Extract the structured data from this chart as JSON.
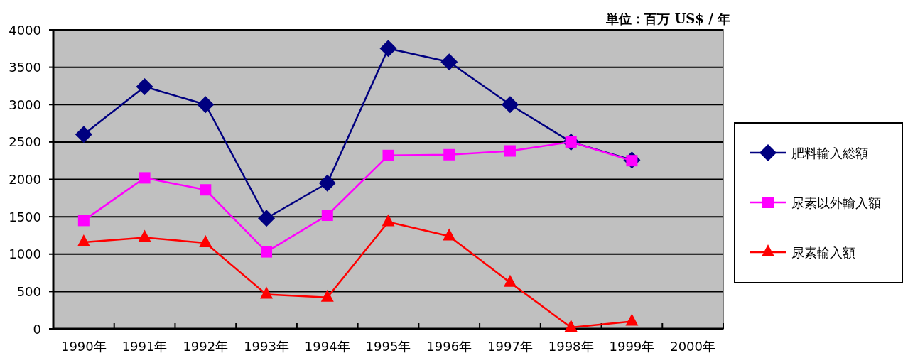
{
  "chart_data": {
    "type": "line",
    "annotations": [
      "単位：百万 US$ / 年"
    ],
    "categories": [
      "1990年",
      "1991年",
      "1992年",
      "1993年",
      "1994年",
      "1995年",
      "1996年",
      "1997年",
      "1998年",
      "1999年",
      "2000年"
    ],
    "series": [
      {
        "name": "肥料輸入総額",
        "color": "#000080",
        "marker": "diamond",
        "values": [
          2600,
          3240,
          3000,
          1480,
          1950,
          3750,
          3570,
          3000,
          2500,
          2260,
          null
        ]
      },
      {
        "name": "尿素以外輸入額",
        "color": "#ff00ff",
        "marker": "square",
        "values": [
          1450,
          2020,
          1860,
          1030,
          1520,
          2320,
          2330,
          2380,
          2500,
          2250,
          null
        ]
      },
      {
        "name": "尿素輸入額",
        "color": "#ff0000",
        "marker": "triangle",
        "values": [
          1160,
          1220,
          1150,
          460,
          420,
          1430,
          1240,
          620,
          20,
          100,
          null
        ]
      }
    ],
    "ylim": [
      0,
      4000
    ],
    "yticks": [
      0,
      500,
      1000,
      1500,
      2000,
      2500,
      3000,
      3500,
      4000
    ],
    "grid": "y",
    "legend": "right"
  }
}
